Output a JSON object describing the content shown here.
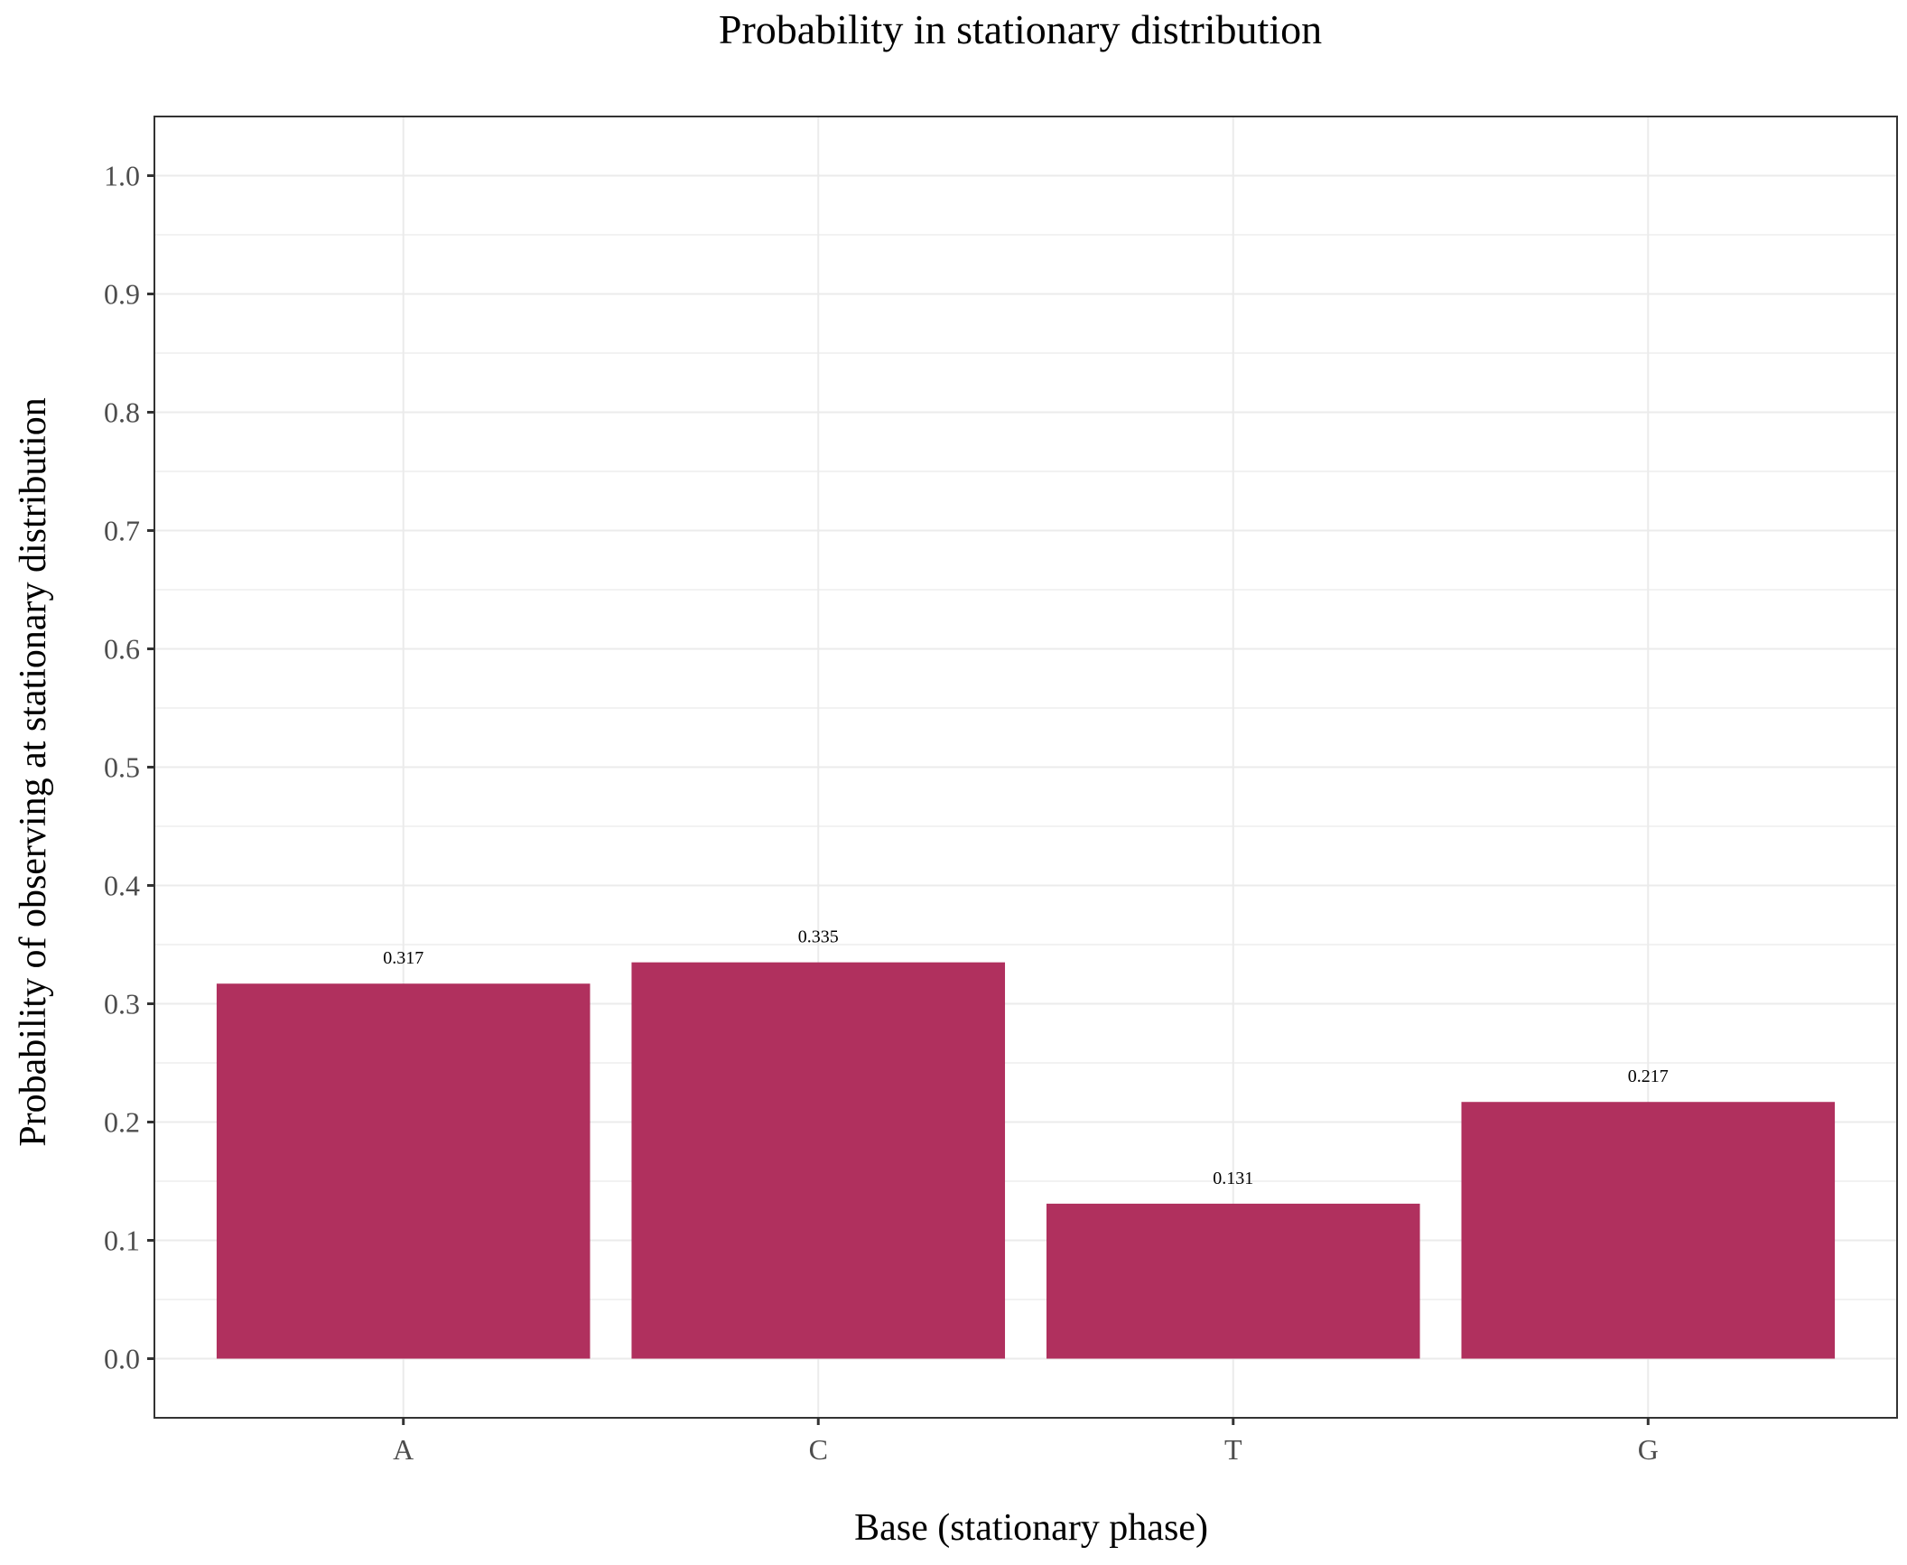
{
  "chart_data": {
    "type": "bar",
    "title": "Probability in stationary distribution",
    "xlabel": "Base (stationary phase)",
    "ylabel": "Probability of observing at stationary distribution",
    "categories": [
      "A",
      "C",
      "T",
      "G"
    ],
    "values": [
      0.317,
      0.335,
      0.131,
      0.217
    ],
    "data_labels": [
      "0.317",
      "0.335",
      "0.131",
      "0.217"
    ],
    "ylim": [
      -0.05,
      1.05
    ],
    "yticks": [
      0.0,
      0.1,
      0.2,
      0.3,
      0.4,
      0.5,
      0.6,
      0.7,
      0.8,
      0.9,
      1.0
    ],
    "ytick_labels": [
      "0.0",
      "0.1",
      "0.2",
      "0.3",
      "0.4",
      "0.5",
      "0.6",
      "0.7",
      "0.8",
      "0.9",
      "1.0"
    ],
    "grid": true,
    "legend": "none",
    "colors": {
      "bar": "#b0305e",
      "grid": "#ebebeb",
      "border": "#333333",
      "tick_text": "#4d4d4d"
    }
  }
}
